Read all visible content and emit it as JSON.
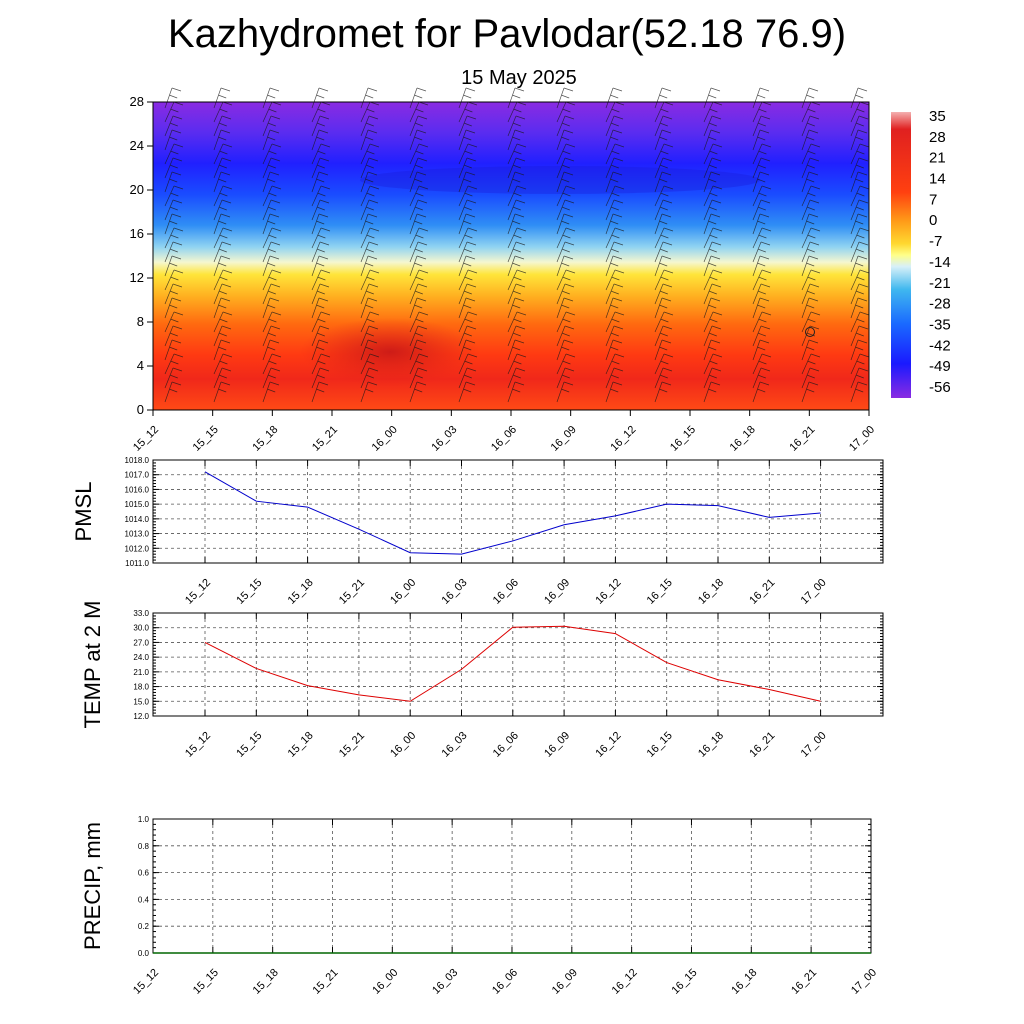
{
  "header": {
    "title": "Kazhydromet for Pavlodar(52.18 76.9)",
    "subtitle": "15 May 2025"
  },
  "colorbar": {
    "labels": [
      "35",
      "28",
      "21",
      "14",
      "7",
      "0",
      "-7",
      "-14",
      "-21",
      "-28",
      "-35",
      "-42",
      "-49",
      "-56"
    ]
  },
  "chart_data": [
    {
      "id": "cross-section",
      "type": "heatmap",
      "title": "",
      "x_tick_labels": [
        "15_12",
        "15_15",
        "15_18",
        "15_21",
        "16_00",
        "16_03",
        "16_06",
        "16_09",
        "16_12",
        "16_15",
        "16_18",
        "16_21",
        "17_00"
      ],
      "y_tick_labels": [
        "0",
        "4",
        "8",
        "12",
        "16",
        "20",
        "24",
        "28"
      ],
      "ylim": [
        0,
        28
      ],
      "value_range": [
        -56,
        35
      ],
      "colormap": [
        "#7a1fd6",
        "#2222ff",
        "#1a6bff",
        "#3fb6f0",
        "#cdeff7",
        "#ffff55",
        "#ffcc33",
        "#ff8a1a",
        "#ff3a10",
        "#e0201a"
      ],
      "wind_barbs": true,
      "annotation_marker": "circle"
    },
    {
      "id": "pmsl",
      "type": "line",
      "ylabel": "PMSL",
      "color": "#0000cc",
      "ylim": [
        1011.0,
        1018.0
      ],
      "y_tick_labels": [
        "1011.0",
        "1012.0",
        "1013.0",
        "1014.0",
        "1015.0",
        "1016.0",
        "1017.0",
        "1018.0"
      ],
      "categories": [
        "15_12",
        "15_15",
        "15_18",
        "15_21",
        "16_00",
        "16_03",
        "16_06",
        "16_09",
        "16_12",
        "16_15",
        "16_18",
        "16_21",
        "17_00"
      ],
      "values": [
        1017.2,
        1015.2,
        1014.8,
        1013.3,
        1011.7,
        1011.6,
        1012.5,
        1013.6,
        1014.2,
        1015.0,
        1014.9,
        1014.1,
        1014.4
      ]
    },
    {
      "id": "temp2m",
      "type": "line",
      "ylabel": "TEMP at 2 M",
      "color": "#dd0000",
      "ylim": [
        12.0,
        33.0
      ],
      "y_tick_labels": [
        "12.0",
        "15.0",
        "18.0",
        "21.0",
        "24.0",
        "27.0",
        "30.0",
        "33.0"
      ],
      "categories": [
        "15_12",
        "15_15",
        "15_18",
        "15_21",
        "16_00",
        "16_03",
        "16_06",
        "16_09",
        "16_12",
        "16_15",
        "16_18",
        "16_21",
        "17_00"
      ],
      "values": [
        27.0,
        21.7,
        18.2,
        16.3,
        15.0,
        21.5,
        30.1,
        30.3,
        28.8,
        22.9,
        19.4,
        17.4,
        15.0
      ]
    },
    {
      "id": "precip",
      "type": "line",
      "ylabel": "PRECIP, mm",
      "color": "#006600",
      "ylim": [
        0.0,
        1.0
      ],
      "y_tick_labels": [
        "0.0",
        "0.2",
        "0.4",
        "0.6",
        "0.8",
        "1.0"
      ],
      "categories": [
        "15_12",
        "15_15",
        "15_18",
        "15_21",
        "16_00",
        "16_03",
        "16_06",
        "16_09",
        "16_12",
        "16_15",
        "16_18",
        "16_21",
        "17_00"
      ],
      "values": [
        0,
        0,
        0,
        0,
        0,
        0,
        0,
        0,
        0,
        0,
        0,
        0,
        0
      ]
    }
  ]
}
